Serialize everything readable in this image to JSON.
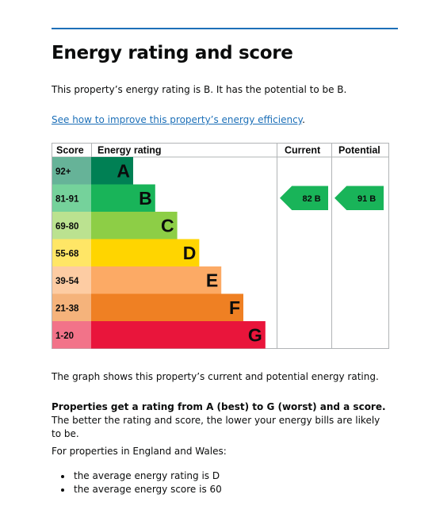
{
  "heading": "Energy rating and score",
  "intro": "This property’s energy rating is B. It has the potential to be B.",
  "improve_link": "See how to improve this property’s energy efficiency",
  "improve_suffix": ".",
  "chart_data": {
    "type": "table",
    "headers": {
      "score": "Score",
      "rating": "Energy rating",
      "current": "Current",
      "potential": "Potential"
    },
    "bands": [
      {
        "score": "92+",
        "letter": "A",
        "color": "#008054"
      },
      {
        "score": "81-91",
        "letter": "B",
        "color": "#19b459"
      },
      {
        "score": "69-80",
        "letter": "C",
        "color": "#8dce46"
      },
      {
        "score": "55-68",
        "letter": "D",
        "color": "#ffd500"
      },
      {
        "score": "39-54",
        "letter": "E",
        "color": "#fcaa65"
      },
      {
        "score": "21-38",
        "letter": "F",
        "color": "#ef8023"
      },
      {
        "score": "1-20",
        "letter": "G",
        "color": "#e9153b"
      }
    ],
    "current": {
      "score": 82,
      "letter": "B",
      "label": "82  B",
      "color": "#19b459"
    },
    "potential": {
      "score": 91,
      "letter": "B",
      "label": "91  B",
      "color": "#19b459"
    }
  },
  "graph_caption": "The graph shows this property’s current and potential energy rating.",
  "ratings_bold": "Properties get a rating from A (best) to G (worst) and a score.",
  "ratings_rest": " The better the rating and score, the lower your energy bills are likely to be.",
  "england_wales": "For properties in England and Wales:",
  "bullets": [
    "the average energy rating is D",
    "the average energy score is 60"
  ]
}
